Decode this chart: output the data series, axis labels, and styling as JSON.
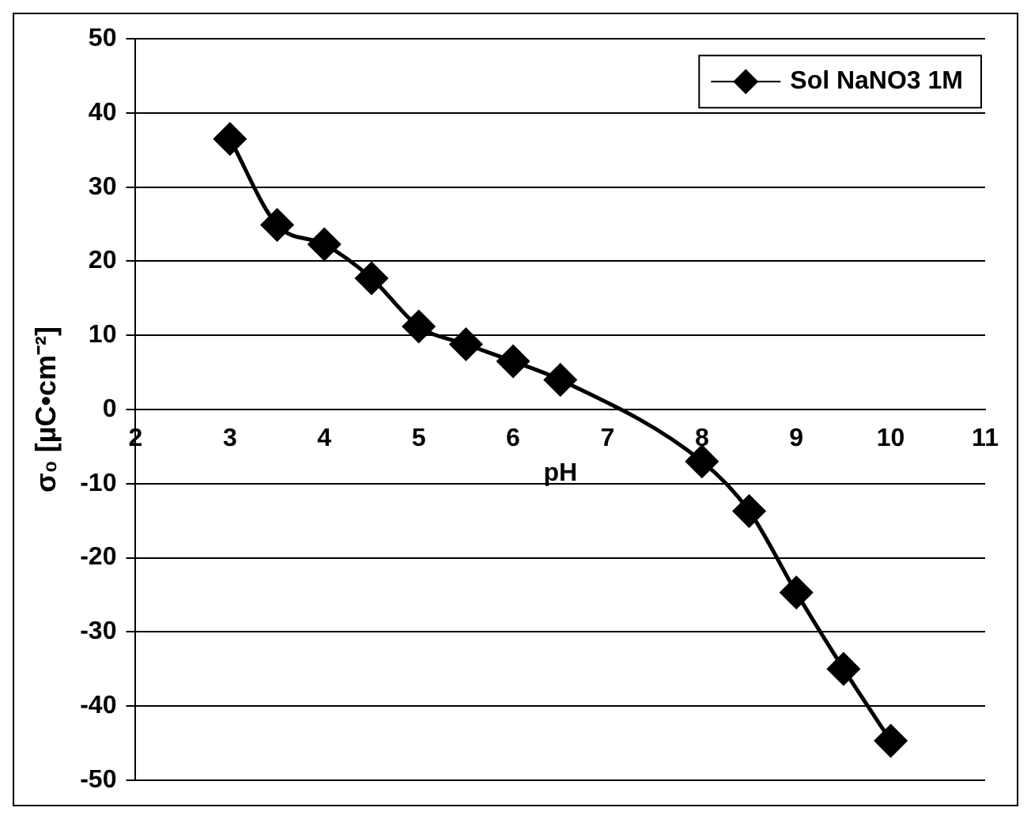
{
  "chart_data": {
    "type": "line",
    "xlabel": "pH",
    "ylabel": "σ₀ [µC•cm⁻²]",
    "x": [
      3,
      3.5,
      4,
      4.5,
      5,
      5.5,
      6,
      6.5,
      8,
      8.5,
      9,
      9.5,
      10
    ],
    "series": [
      {
        "name": "Sol NaNO3 1M",
        "color": "#000000",
        "values": [
          36.5,
          24.9,
          22.3,
          17.7,
          11.2,
          8.8,
          6.5,
          4,
          -7,
          -13.7,
          -24.7,
          -35,
          -44.7
        ]
      }
    ],
    "xlim": [
      2,
      11
    ],
    "xticks": [
      2,
      3,
      4,
      5,
      6,
      7,
      8,
      9,
      10,
      11
    ],
    "ylim": [
      -50,
      50
    ],
    "yticks": [
      -50,
      -40,
      -30,
      -20,
      -10,
      0,
      10,
      20,
      30,
      40,
      50
    ],
    "grid": "y",
    "legend": "top right",
    "marker": "diamond",
    "line_style": "solid"
  }
}
